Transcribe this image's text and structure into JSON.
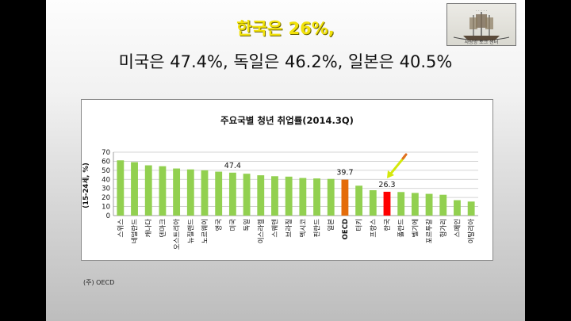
{
  "slide": {
    "headline_1": "한국은 26%,",
    "headline_2": "미국은 47.4%, 독일은 46.2%, 일본은 40.5%",
    "source_note": "(주) OECD",
    "logo_text": "사랑방 토크 센터"
  },
  "colors": {
    "headline_1": "#f2e20a",
    "bar_default": "#92d050",
    "bar_oecd": "#e46c0a",
    "bar_korea": "#ff0000",
    "arrow": "#d4e80a"
  },
  "chart_data": {
    "type": "bar",
    "title": "주요국별 청년 취업률(2014.3Q)",
    "ylabel": "(15-24세, %)",
    "xlabel": "",
    "ylim": [
      0,
      70
    ],
    "yticks": [
      0,
      10,
      20,
      30,
      40,
      50,
      60,
      70
    ],
    "grid": true,
    "categories": [
      "스위스",
      "네덜란드",
      "캐나다",
      "덴마크",
      "오스트리아",
      "뉴질랜드",
      "노르웨이",
      "영국",
      "미국",
      "독일",
      "이스라엘",
      "스웨덴",
      "브라질",
      "멕시코",
      "핀란드",
      "일본",
      "OECD",
      "터키",
      "프랑스",
      "한국",
      "폴란드",
      "벨기에",
      "포르투갈",
      "헝가리",
      "스페인",
      "이탈리아"
    ],
    "values": [
      61,
      59,
      55.5,
      54.5,
      52,
      51,
      50,
      48.5,
      47.4,
      46.2,
      44.5,
      43.5,
      43,
      41.5,
      41,
      40.5,
      39.7,
      33,
      28,
      26.3,
      26,
      25,
      24,
      23,
      17,
      15.5
    ],
    "highlight": {
      "OECD": "bar_oecd",
      "한국": "bar_korea"
    },
    "data_labels": {
      "미국": "47.4",
      "OECD": "39.7",
      "한국": "26.3"
    }
  }
}
